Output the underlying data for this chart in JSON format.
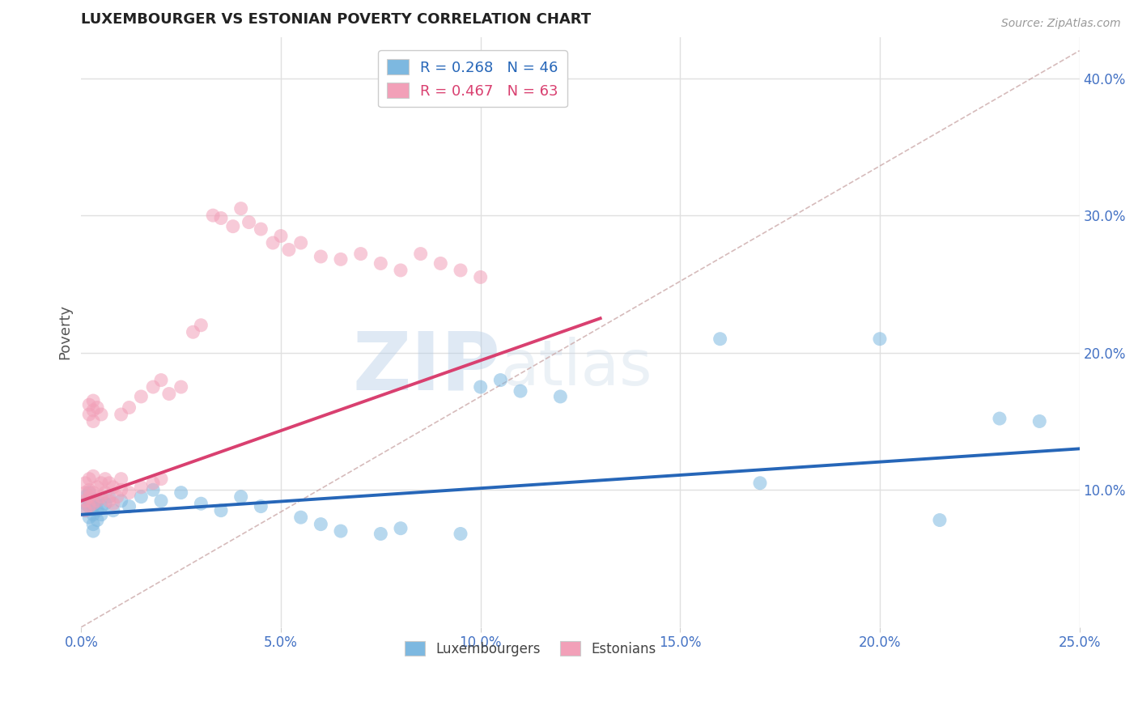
{
  "title": "LUXEMBOURGER VS ESTONIAN POVERTY CORRELATION CHART",
  "source": "Source: ZipAtlas.com",
  "xlim": [
    0.0,
    0.25
  ],
  "ylim": [
    0.0,
    0.43
  ],
  "ylabel": "Poverty",
  "lux_R": 0.268,
  "lux_N": 46,
  "est_R": 0.467,
  "est_N": 63,
  "lux_color": "#7db8e0",
  "est_color": "#f2a0b8",
  "lux_line_color": "#2666b8",
  "est_line_color": "#d94070",
  "dashed_line_color": "#ccaaaa",
  "background_color": "#ffffff",
  "grid_color": "#e0e0e0",
  "watermark_zip": "ZIP",
  "watermark_atlas": "atlas",
  "lux_scatter": [
    [
      0.001,
      0.085
    ],
    [
      0.001,
      0.09
    ],
    [
      0.001,
      0.095
    ],
    [
      0.002,
      0.08
    ],
    [
      0.002,
      0.088
    ],
    [
      0.002,
      0.092
    ],
    [
      0.002,
      0.098
    ],
    [
      0.003,
      0.082
    ],
    [
      0.003,
      0.088
    ],
    [
      0.003,
      0.093
    ],
    [
      0.003,
      0.075
    ],
    [
      0.003,
      0.07
    ],
    [
      0.004,
      0.085
    ],
    [
      0.004,
      0.092
    ],
    [
      0.004,
      0.078
    ],
    [
      0.005,
      0.088
    ],
    [
      0.005,
      0.082
    ],
    [
      0.006,
      0.09
    ],
    [
      0.007,
      0.095
    ],
    [
      0.008,
      0.085
    ],
    [
      0.01,
      0.092
    ],
    [
      0.012,
      0.088
    ],
    [
      0.015,
      0.095
    ],
    [
      0.018,
      0.1
    ],
    [
      0.02,
      0.092
    ],
    [
      0.025,
      0.098
    ],
    [
      0.03,
      0.09
    ],
    [
      0.035,
      0.085
    ],
    [
      0.04,
      0.095
    ],
    [
      0.045,
      0.088
    ],
    [
      0.055,
      0.08
    ],
    [
      0.06,
      0.075
    ],
    [
      0.065,
      0.07
    ],
    [
      0.075,
      0.068
    ],
    [
      0.08,
      0.072
    ],
    [
      0.095,
      0.068
    ],
    [
      0.1,
      0.175
    ],
    [
      0.105,
      0.18
    ],
    [
      0.11,
      0.172
    ],
    [
      0.12,
      0.168
    ],
    [
      0.16,
      0.21
    ],
    [
      0.17,
      0.105
    ],
    [
      0.2,
      0.21
    ],
    [
      0.215,
      0.078
    ],
    [
      0.23,
      0.152
    ],
    [
      0.24,
      0.15
    ]
  ],
  "est_scatter": [
    [
      0.001,
      0.085
    ],
    [
      0.001,
      0.092
    ],
    [
      0.001,
      0.098
    ],
    [
      0.001,
      0.105
    ],
    [
      0.002,
      0.088
    ],
    [
      0.002,
      0.095
    ],
    [
      0.002,
      0.1
    ],
    [
      0.002,
      0.108
    ],
    [
      0.002,
      0.155
    ],
    [
      0.002,
      0.162
    ],
    [
      0.003,
      0.09
    ],
    [
      0.003,
      0.098
    ],
    [
      0.003,
      0.11
    ],
    [
      0.003,
      0.15
    ],
    [
      0.003,
      0.158
    ],
    [
      0.003,
      0.165
    ],
    [
      0.004,
      0.092
    ],
    [
      0.004,
      0.102
    ],
    [
      0.004,
      0.16
    ],
    [
      0.005,
      0.095
    ],
    [
      0.005,
      0.105
    ],
    [
      0.005,
      0.155
    ],
    [
      0.006,
      0.098
    ],
    [
      0.006,
      0.108
    ],
    [
      0.007,
      0.092
    ],
    [
      0.007,
      0.105
    ],
    [
      0.008,
      0.09
    ],
    [
      0.008,
      0.102
    ],
    [
      0.009,
      0.095
    ],
    [
      0.01,
      0.1
    ],
    [
      0.01,
      0.108
    ],
    [
      0.01,
      0.155
    ],
    [
      0.012,
      0.098
    ],
    [
      0.012,
      0.16
    ],
    [
      0.015,
      0.102
    ],
    [
      0.015,
      0.168
    ],
    [
      0.018,
      0.105
    ],
    [
      0.018,
      0.175
    ],
    [
      0.02,
      0.108
    ],
    [
      0.02,
      0.18
    ],
    [
      0.022,
      0.17
    ],
    [
      0.025,
      0.175
    ],
    [
      0.028,
      0.215
    ],
    [
      0.03,
      0.22
    ],
    [
      0.033,
      0.3
    ],
    [
      0.035,
      0.298
    ],
    [
      0.038,
      0.292
    ],
    [
      0.04,
      0.305
    ],
    [
      0.042,
      0.295
    ],
    [
      0.045,
      0.29
    ],
    [
      0.048,
      0.28
    ],
    [
      0.05,
      0.285
    ],
    [
      0.052,
      0.275
    ],
    [
      0.055,
      0.28
    ],
    [
      0.06,
      0.27
    ],
    [
      0.065,
      0.268
    ],
    [
      0.07,
      0.272
    ],
    [
      0.075,
      0.265
    ],
    [
      0.08,
      0.26
    ],
    [
      0.085,
      0.272
    ],
    [
      0.09,
      0.265
    ],
    [
      0.095,
      0.26
    ],
    [
      0.1,
      0.255
    ]
  ],
  "lux_line": [
    [
      0.0,
      0.082
    ],
    [
      0.25,
      0.13
    ]
  ],
  "est_line": [
    [
      0.0,
      0.092
    ],
    [
      0.13,
      0.225
    ]
  ],
  "dashed_line": [
    [
      0.0,
      0.0
    ],
    [
      0.25,
      0.42
    ]
  ]
}
